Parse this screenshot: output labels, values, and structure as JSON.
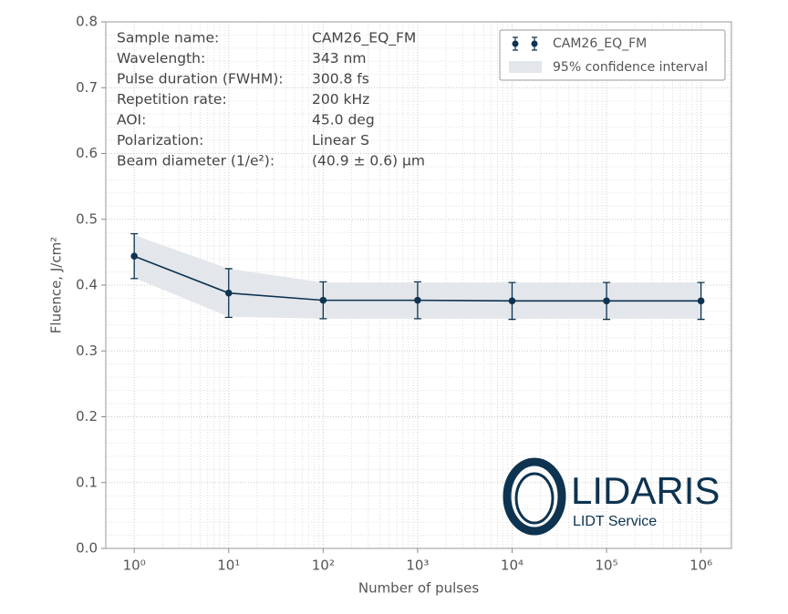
{
  "chart_data": {
    "type": "line",
    "xlabel": "Number of pulses",
    "ylabel": "Fluence, J/cm²",
    "xscale": "log",
    "xlim": [
      0.5,
      2100000
    ],
    "ylim": [
      0,
      0.8
    ],
    "xticks": [
      {
        "value": 1,
        "label": "10⁰"
      },
      {
        "value": 10,
        "label": "10¹"
      },
      {
        "value": 100,
        "label": "10²"
      },
      {
        "value": 1000,
        "label": "10³"
      },
      {
        "value": 10000,
        "label": "10⁴"
      },
      {
        "value": 100000,
        "label": "10⁵"
      },
      {
        "value": 1000000,
        "label": "10⁶"
      }
    ],
    "yticks": [
      {
        "value": 0,
        "label": "0.0"
      },
      0.1,
      0.2,
      0.3,
      0.4,
      0.5,
      0.6,
      0.7,
      0.8
    ],
    "grid": true,
    "legend": "upper right",
    "series": [
      {
        "name": "CAM26_EQ_FM",
        "color": "#0d3350",
        "x": [
          1,
          10,
          100,
          1000,
          10000,
          100000,
          1000000
        ],
        "values": [
          0.444,
          0.388,
          0.377,
          0.377,
          0.376,
          0.376,
          0.376
        ],
        "errors": [
          0.034,
          0.037,
          0.028,
          0.028,
          0.028,
          0.028,
          0.028
        ]
      }
    ],
    "band": {
      "name": "95% confidence interval",
      "color": "#e3e6ea",
      "upper": [
        0.476,
        0.425,
        0.404,
        0.404,
        0.404,
        0.404,
        0.404
      ],
      "lower": [
        0.411,
        0.352,
        0.349,
        0.349,
        0.349,
        0.349,
        0.349
      ]
    },
    "info": [
      {
        "label": "Sample name:",
        "value": "CAM26_EQ_FM"
      },
      {
        "label": "Wavelength:",
        "value": "343 nm"
      },
      {
        "label": "Pulse duration (FWHM):",
        "value": "300.8 fs"
      },
      {
        "label": "Repetition rate:",
        "value": "200 kHz"
      },
      {
        "label": "AOI:",
        "value": "45.0 deg"
      },
      {
        "label": "Polarization:",
        "value": "Linear S"
      },
      {
        "label": "Beam diameter (1/e²):",
        "value": "(40.9 ± 0.6) µm"
      }
    ]
  },
  "logo": {
    "name": "LIDARIS",
    "tagline": "LIDT Service"
  }
}
